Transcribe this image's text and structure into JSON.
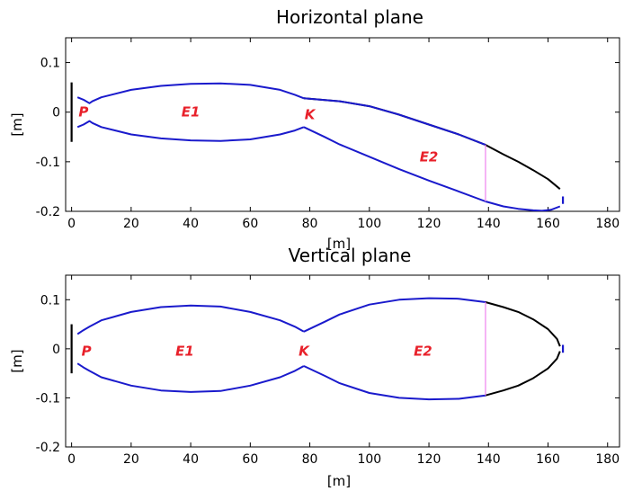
{
  "colors": {
    "envelope": "#1a1acc",
    "aperture": "#000000",
    "cut": "#ee82ee",
    "annotation": "#e8202a"
  },
  "chart_data": [
    {
      "type": "line",
      "title": "Horizontal plane",
      "xlabel": "[m]",
      "ylabel": "[m]",
      "xlim": [
        -2,
        184
      ],
      "ylim": [
        -0.2,
        0.15
      ],
      "xticks": [
        "0",
        "20",
        "40",
        "60",
        "80",
        "100",
        "120",
        "140",
        "160",
        "180"
      ],
      "yticks": [
        "0.1",
        "0",
        "-0.1",
        "-0.2"
      ],
      "xtick_values": [
        0,
        20,
        40,
        60,
        80,
        100,
        120,
        140,
        160,
        180
      ],
      "ytick_values": [
        0.1,
        0,
        -0.1,
        -0.2
      ],
      "series": [
        {
          "role": "envelope-upper",
          "color": "blue",
          "x": [
            2,
            4,
            6,
            7,
            10,
            20,
            30,
            40,
            50,
            60,
            70,
            75,
            78
          ],
          "y": [
            0.03,
            0.025,
            0.018,
            0.022,
            0.03,
            0.045,
            0.053,
            0.057,
            0.058,
            0.055,
            0.045,
            0.035,
            0.028
          ]
        },
        {
          "role": "envelope-lower",
          "color": "blue",
          "x": [
            2,
            4,
            6,
            7,
            10,
            20,
            30,
            40,
            50,
            60,
            70,
            75,
            78
          ],
          "y": [
            -0.03,
            -0.025,
            -0.018,
            -0.022,
            -0.03,
            -0.045,
            -0.053,
            -0.057,
            -0.058,
            -0.055,
            -0.045,
            -0.037,
            -0.03
          ]
        },
        {
          "role": "envelope-upper-2",
          "color": "black",
          "x": [
            78,
            90,
            100,
            110,
            120,
            130,
            139
          ],
          "y": [
            0.028,
            0.022,
            0.012,
            -0.005,
            -0.025,
            -0.045,
            -0.066
          ]
        },
        {
          "role": "envelope-upper-2-tail",
          "color": "black",
          "x": [
            139,
            145,
            150,
            155,
            160,
            164
          ],
          "y": [
            -0.066,
            -0.085,
            -0.1,
            -0.117,
            -0.135,
            -0.155
          ]
        },
        {
          "role": "envelope-lower-2",
          "color": "blue",
          "x": [
            78,
            85,
            90,
            100,
            110,
            120,
            130,
            139
          ],
          "y": [
            -0.03,
            -0.05,
            -0.065,
            -0.09,
            -0.115,
            -0.138,
            -0.16,
            -0.18
          ]
        },
        {
          "role": "envelope-lower-2-tail",
          "color": "blue",
          "x": [
            139,
            145,
            150,
            155,
            158,
            161,
            164
          ],
          "y": [
            -0.18,
            -0.19,
            -0.195,
            -0.198,
            -0.199,
            -0.197,
            -0.19
          ]
        },
        {
          "role": "segment-upper-2",
          "color": "blue",
          "x": [
            78,
            90,
            100,
            110,
            120,
            130,
            139
          ],
          "y": [
            0.028,
            0.022,
            0.012,
            -0.005,
            -0.025,
            -0.045,
            -0.066
          ]
        }
      ],
      "verticals": [
        {
          "color": "black",
          "x": 0,
          "y0": -0.06,
          "y1": 0.06
        },
        {
          "color": "violet",
          "x": 139,
          "y0": -0.066,
          "y1": -0.18
        },
        {
          "color": "blue",
          "x": 165,
          "y0": -0.17,
          "y1": -0.185
        }
      ],
      "annotations": [
        {
          "text": "P",
          "x": 4,
          "y": 0.0
        },
        {
          "text": "E1",
          "x": 40,
          "y": 0.0
        },
        {
          "text": "K",
          "x": 80,
          "y": -0.005
        },
        {
          "text": "E2",
          "x": 120,
          "y": -0.09
        }
      ]
    },
    {
      "type": "line",
      "title": "Vertical plane",
      "xlabel": "[m]",
      "ylabel": "[m]",
      "xlim": [
        -2,
        184
      ],
      "ylim": [
        -0.2,
        0.15
      ],
      "xticks": [
        "0",
        "20",
        "40",
        "60",
        "80",
        "100",
        "120",
        "140",
        "160",
        "180"
      ],
      "yticks": [
        "0.1",
        "0",
        "-0.1",
        "-0.2"
      ],
      "xtick_values": [
        0,
        20,
        40,
        60,
        80,
        100,
        120,
        140,
        160,
        180
      ],
      "ytick_values": [
        0.1,
        0,
        -0.1,
        -0.2
      ],
      "series": [
        {
          "role": "envelope-upper",
          "color": "blue",
          "x": [
            2,
            4,
            6,
            10,
            20,
            30,
            40,
            50,
            60,
            70,
            75,
            78
          ],
          "y": [
            0.03,
            0.038,
            0.045,
            0.058,
            0.075,
            0.085,
            0.088,
            0.086,
            0.075,
            0.058,
            0.045,
            0.035
          ]
        },
        {
          "role": "envelope-lower",
          "color": "blue",
          "x": [
            2,
            4,
            6,
            10,
            20,
            30,
            40,
            50,
            60,
            70,
            75,
            78
          ],
          "y": [
            -0.03,
            -0.038,
            -0.045,
            -0.058,
            -0.075,
            -0.085,
            -0.088,
            -0.086,
            -0.075,
            -0.058,
            -0.045,
            -0.035
          ]
        },
        {
          "role": "envelope-upper-2",
          "color": "blue",
          "x": [
            78,
            85,
            90,
            100,
            110,
            120,
            130,
            139
          ],
          "y": [
            0.035,
            0.055,
            0.07,
            0.09,
            0.1,
            0.103,
            0.102,
            0.095
          ]
        },
        {
          "role": "envelope-upper-2-tail",
          "color": "black",
          "x": [
            139,
            145,
            150,
            155,
            160,
            163,
            164
          ],
          "y": [
            0.095,
            0.085,
            0.075,
            0.06,
            0.04,
            0.02,
            0.005
          ]
        },
        {
          "role": "envelope-lower-2",
          "color": "blue",
          "x": [
            78,
            85,
            90,
            100,
            110,
            120,
            130,
            139
          ],
          "y": [
            -0.035,
            -0.055,
            -0.07,
            -0.09,
            -0.1,
            -0.103,
            -0.102,
            -0.095
          ]
        },
        {
          "role": "envelope-lower-2-tail",
          "color": "black",
          "x": [
            139,
            145,
            150,
            155,
            160,
            163,
            164
          ],
          "y": [
            -0.095,
            -0.085,
            -0.075,
            -0.06,
            -0.04,
            -0.02,
            -0.005
          ]
        }
      ],
      "verticals": [
        {
          "color": "black",
          "x": 0,
          "y0": -0.05,
          "y1": 0.05
        },
        {
          "color": "violet",
          "x": 139,
          "y0": -0.095,
          "y1": 0.095
        },
        {
          "color": "blue",
          "x": 165,
          "y0": -0.008,
          "y1": 0.008
        }
      ],
      "annotations": [
        {
          "text": "P",
          "x": 5,
          "y": -0.005
        },
        {
          "text": "E1",
          "x": 38,
          "y": -0.005
        },
        {
          "text": "K",
          "x": 78,
          "y": -0.005
        },
        {
          "text": "E2",
          "x": 118,
          "y": -0.005
        }
      ]
    }
  ]
}
